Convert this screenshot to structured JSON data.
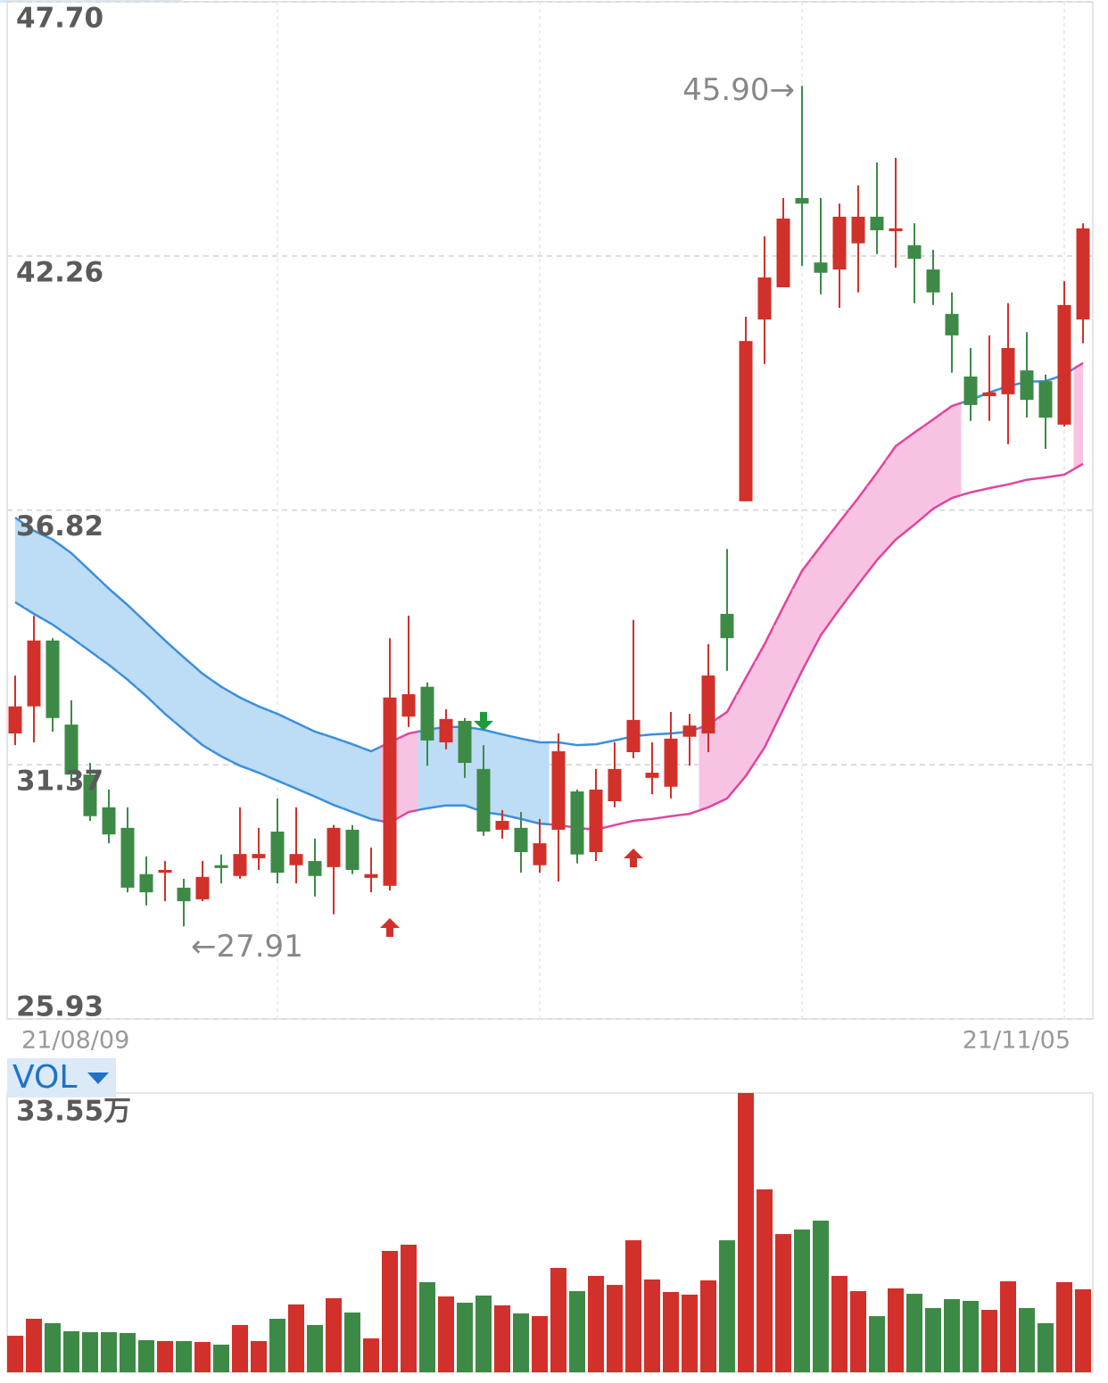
{
  "chart_data": {
    "type": "candlestick",
    "categories": [
      "21/08/09",
      null,
      null,
      null,
      null,
      null,
      null,
      null,
      null,
      null,
      null,
      null,
      null,
      null,
      null,
      null,
      null,
      null,
      null,
      null,
      null,
      null,
      null,
      null,
      null,
      null,
      null,
      null,
      null,
      null,
      null,
      null,
      null,
      null,
      null,
      null,
      null,
      null,
      null,
      null,
      null,
      null,
      null,
      null,
      null,
      null,
      null,
      null,
      null,
      null,
      null,
      null,
      null,
      null,
      null,
      null,
      null,
      "21/11/05"
    ],
    "candles": {
      "open": [
        32.04,
        32.62,
        34.03,
        32.23,
        31.16,
        30.46,
        30.02,
        29.03,
        29.06,
        28.74,
        28.49,
        29.22,
        28.99,
        29.37,
        29.94,
        29.22,
        29.31,
        29.18,
        29.98,
        28.95,
        28.78,
        32.4,
        33.04,
        31.85,
        32.31,
        31.28,
        29.98,
        30.02,
        29.22,
        29.98,
        30.8,
        29.5,
        30.59,
        31.64,
        31.09,
        30.9,
        31.97,
        32.04,
        34.6,
        37.01,
        40.9,
        41.59,
        43.5,
        42.12,
        41.97,
        42.53,
        43.1,
        42.79,
        42.49,
        41.97,
        41.02,
        39.68,
        39.26,
        39.3,
        39.81,
        39.58,
        38.65,
        40.9
      ],
      "high": [
        33.28,
        34.56,
        34.08,
        32.75,
        31.41,
        30.84,
        30.46,
        29.41,
        29.31,
        28.93,
        29.31,
        29.45,
        30.46,
        30.02,
        30.65,
        30.46,
        29.79,
        30.08,
        30.08,
        29.6,
        34.08,
        34.56,
        33.13,
        32.56,
        32.37,
        31.79,
        30.4,
        30.36,
        30.21,
        32.04,
        30.84,
        31.28,
        31.85,
        34.47,
        31.85,
        32.5,
        32.46,
        33.95,
        35.99,
        40.96,
        42.68,
        43.5,
        45.9,
        43.5,
        43.38,
        43.77,
        44.26,
        44.36,
        42.96,
        42.39,
        41.48,
        40.29,
        40.56,
        41.25,
        40.63,
        39.72,
        41.72,
        42.96
      ],
      "low": [
        31.79,
        31.85,
        32.08,
        30.93,
        30.17,
        29.69,
        28.64,
        28.36,
        28.45,
        27.91,
        28.45,
        28.83,
        28.93,
        29.12,
        28.83,
        28.83,
        28.55,
        28.17,
        29.03,
        28.64,
        28.68,
        32.18,
        31.35,
        31.7,
        31.09,
        29.85,
        29.79,
        29.06,
        29.06,
        28.87,
        29.26,
        29.31,
        30.46,
        31.51,
        30.74,
        30.65,
        31.35,
        31.64,
        33.38,
        37.01,
        39.95,
        41.59,
        42.05,
        41.44,
        41.15,
        41.48,
        42.3,
        42.01,
        41.25,
        41.21,
        39.76,
        38.73,
        38.73,
        38.23,
        38.8,
        38.13,
        38.61,
        40.39
      ],
      "close": [
        32.62,
        34.03,
        32.37,
        31.16,
        30.27,
        29.88,
        28.74,
        28.64,
        29.12,
        28.45,
        28.97,
        29.16,
        29.46,
        29.46,
        29.06,
        29.46,
        28.99,
        30.02,
        29.12,
        29.03,
        32.81,
        32.88,
        31.89,
        32.35,
        31.41,
        29.94,
        30.17,
        29.5,
        29.69,
        31.66,
        29.45,
        30.84,
        31.28,
        32.33,
        31.2,
        31.93,
        32.21,
        33.28,
        34.08,
        40.44,
        41.8,
        43.06,
        43.38,
        41.9,
        43.1,
        43.1,
        42.81,
        42.85,
        42.2,
        41.48,
        40.56,
        39.07,
        39.34,
        40.29,
        39.18,
        38.8,
        41.21,
        42.85
      ]
    },
    "up_color": "#d2302a",
    "down_color": "#3d8a47",
    "bands": {
      "upper": [
        36.66,
        36.38,
        36.19,
        35.9,
        35.52,
        35.14,
        34.79,
        34.41,
        34.03,
        33.67,
        33.32,
        33.04,
        32.81,
        32.62,
        32.46,
        32.27,
        32.08,
        31.95,
        31.81,
        31.66,
        31.85,
        32.04,
        32.12,
        32.18,
        32.18,
        32.12,
        32.02,
        31.93,
        31.85,
        31.85,
        31.79,
        31.81,
        31.89,
        31.98,
        32.02,
        32.04,
        32.08,
        32.23,
        32.5,
        33.23,
        33.95,
        34.75,
        35.52,
        36.05,
        36.57,
        37.08,
        37.62,
        38.19,
        38.48,
        38.76,
        39.05,
        39.18,
        39.34,
        39.47,
        39.57,
        39.58,
        39.72,
        39.97
      ],
      "lower": [
        34.85,
        34.6,
        34.37,
        34.09,
        33.8,
        33.51,
        33.19,
        32.84,
        32.46,
        32.12,
        31.79,
        31.55,
        31.35,
        31.2,
        31.03,
        30.86,
        30.69,
        30.51,
        30.36,
        30.21,
        30.13,
        30.36,
        30.44,
        30.5,
        30.5,
        30.36,
        30.3,
        30.21,
        30.11,
        30.08,
        30.02,
        29.98,
        30.08,
        30.17,
        30.21,
        30.27,
        30.32,
        30.46,
        30.65,
        31.13,
        31.74,
        32.56,
        33.38,
        34.14,
        34.7,
        35.23,
        35.75,
        36.19,
        36.51,
        36.85,
        37.08,
        37.2,
        37.29,
        37.37,
        37.47,
        37.52,
        37.58,
        37.81
      ],
      "fill": [
        "blue",
        "blue",
        "blue",
        "blue",
        "blue",
        "blue",
        "blue",
        "blue",
        "blue",
        "blue",
        "blue",
        "blue",
        "blue",
        "blue",
        "blue",
        "blue",
        "blue",
        "blue",
        "blue",
        "blue",
        "pink",
        "pink",
        "blue",
        "blue",
        "blue",
        "blue",
        "blue",
        "blue",
        "blue",
        null,
        null,
        null,
        null,
        null,
        null,
        null,
        null,
        "pink",
        "pink",
        "pink",
        "pink",
        "pink",
        "pink",
        "pink",
        "pink",
        "pink",
        "pink",
        "pink",
        "pink",
        "pink",
        "pink",
        null,
        null,
        null,
        null,
        null,
        null,
        "pink"
      ],
      "colors": {
        "blue": {
          "fill": "#bddcf6",
          "line": "#3b8fdc"
        },
        "pink": {
          "fill": "#f8c3e2",
          "line": "#e1449e"
        }
      }
    },
    "buy_signals": [
      20,
      33
    ],
    "sell_signals": [
      25
    ],
    "high_label": "45.90→",
    "low_label": "←27.91",
    "ylim": [
      25.93,
      47.7
    ],
    "yticks": [
      {
        "value": 47.7,
        "label": "47.70"
      },
      42.26,
      36.82,
      31.37,
      25.93
    ],
    "volume": {
      "label": "VOL",
      "values": [
        4.39,
        6.43,
        5.9,
        4.93,
        4.82,
        4.82,
        4.72,
        3.86,
        3.75,
        3.75,
        3.64,
        3.32,
        5.68,
        3.75,
        6.43,
        8.15,
        5.68,
        8.9,
        7.18,
        4.07,
        14.58,
        15.33,
        10.83,
        9.11,
        8.36,
        9.22,
        8.04,
        7.07,
        6.75,
        12.54,
        9.75,
        11.58,
        10.5,
        15.86,
        11.15,
        9.65,
        9.33,
        11.04,
        15.86,
        33.55,
        21.97,
        16.61,
        17.15,
        18.22,
        11.58,
        9.75,
        6.75,
        10.08,
        9.43,
        7.72,
        8.79,
        8.58,
        7.5,
        10.93,
        7.72,
        5.9,
        10.83,
        9.97
      ],
      "ylim": [
        0,
        33.55
      ],
      "yticks": [
        {
          "value": 33.55,
          "label": "33.55万"
        }
      ]
    }
  }
}
